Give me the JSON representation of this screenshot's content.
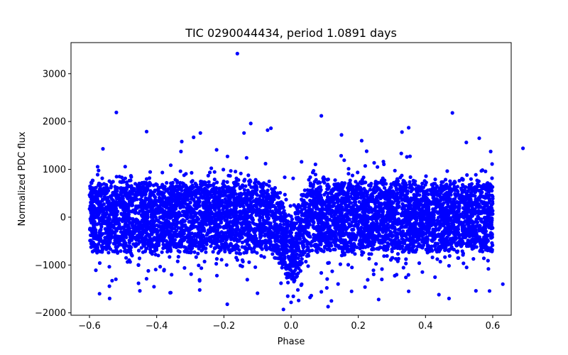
{
  "chart_data": {
    "type": "scatter",
    "title": "TIC 0290044434, period 1.0891 days",
    "xlabel": "Phase",
    "ylabel": "Normalized PDC flux",
    "xlim": [
      -0.655,
      0.655
    ],
    "ylim": [
      -2050,
      3650
    ],
    "xticks": [
      -0.6,
      -0.4,
      -0.2,
      0.0,
      0.2,
      0.4,
      0.6
    ],
    "xtick_labels": [
      "−0.6",
      "−0.4",
      "−0.2",
      "0.0",
      "0.2",
      "0.4",
      "0.6"
    ],
    "yticks": [
      -2000,
      -1000,
      0,
      1000,
      2000,
      3000
    ],
    "ytick_labels": [
      "−2000",
      "−1000",
      "0",
      "1000",
      "2000",
      "3000"
    ],
    "grid": false,
    "legend": "none",
    "marker_color": "#0000ff",
    "series": [
      {
        "points": [
          [
            -0.16,
            3420
          ],
          [
            -0.52,
            2190
          ],
          [
            0.09,
            2120
          ],
          [
            0.48,
            2180
          ],
          [
            -0.12,
            1960
          ],
          [
            -0.43,
            1790
          ],
          [
            -0.29,
            1670
          ],
          [
            -0.27,
            1760
          ],
          [
            0.35,
            1870
          ],
          [
            -0.06,
            1860
          ],
          [
            0.15,
            1720
          ],
          [
            0.33,
            1780
          ],
          [
            -0.07,
            1820
          ],
          [
            -0.56,
            1430
          ],
          [
            0.69,
            1440
          ],
          [
            -0.14,
            1760
          ],
          [
            0.56,
            1650
          ],
          [
            0.21,
            1600
          ],
          [
            -0.57,
            -1600
          ],
          [
            -0.54,
            -1700
          ],
          [
            -0.19,
            -1820
          ],
          [
            0.0,
            -1780
          ],
          [
            0.06,
            -1640
          ],
          [
            0.12,
            -1750
          ],
          [
            0.44,
            -1620
          ],
          [
            0.47,
            -1700
          ],
          [
            0.55,
            -1540
          ],
          [
            -0.45,
            -1540
          ],
          [
            -0.36,
            -1580
          ],
          [
            -0.1,
            -1590
          ],
          [
            0.22,
            -1460
          ],
          [
            0.35,
            -1550
          ],
          [
            0.02,
            -1520
          ],
          [
            -0.01,
            -1650
          ],
          [
            0.09,
            -1560
          ],
          [
            0.18,
            -1550
          ],
          [
            -0.03,
            -1380
          ],
          [
            0.03,
            -1420
          ],
          [
            0.27,
            -1300
          ],
          [
            0.63,
            -1400
          ]
        ]
      }
    ],
    "generator": {
      "phase_min": -0.6,
      "phase_max": 0.6,
      "scatter_sigma": 380,
      "core_halfwidth": 700,
      "dip_depth": 700,
      "dip_width": 0.022
    }
  }
}
